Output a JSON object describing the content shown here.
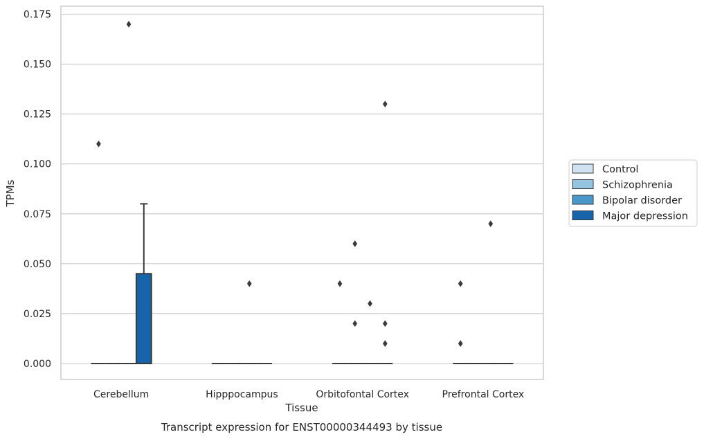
{
  "chart_data": {
    "type": "box",
    "title": "Transcript expression for ENST00000344493 by tissue",
    "xlabel": "Tissue",
    "ylabel": "TPMs",
    "ylim": [
      -0.008,
      0.179
    ],
    "yticks": [
      0.0,
      0.025,
      0.05,
      0.075,
      0.1,
      0.125,
      0.15,
      0.175
    ],
    "ytick_labels": [
      "0.000",
      "0.025",
      "0.050",
      "0.075",
      "0.100",
      "0.125",
      "0.150",
      "0.175"
    ],
    "grid": "horizontal",
    "legend_position": "right",
    "categories": [
      "Cerebellum",
      "Hipppocampus",
      "Orbitofontal Cortex",
      "Prefrontal Cortex"
    ],
    "series": [
      {
        "name": "Control",
        "color": "#d0e1f2",
        "boxes": [
          {
            "min": 0,
            "q1": 0,
            "median": 0,
            "q3": 0,
            "max": 0,
            "outliers": [
              0.11
            ]
          },
          {
            "min": 0,
            "q1": 0,
            "median": 0,
            "q3": 0,
            "max": 0,
            "outliers": []
          },
          {
            "min": 0,
            "q1": 0,
            "median": 0,
            "q3": 0,
            "max": 0,
            "outliers": [
              0.04
            ]
          },
          {
            "min": 0,
            "q1": 0,
            "median": 0,
            "q3": 0,
            "max": 0,
            "outliers": [
              0.04,
              0.01
            ]
          }
        ]
      },
      {
        "name": "Schizophrenia",
        "color": "#94c4df",
        "boxes": [
          {
            "min": 0,
            "q1": 0,
            "median": 0,
            "q3": 0,
            "max": 0,
            "outliers": []
          },
          {
            "min": 0,
            "q1": 0,
            "median": 0,
            "q3": 0,
            "max": 0,
            "outliers": []
          },
          {
            "min": 0,
            "q1": 0,
            "median": 0,
            "q3": 0,
            "max": 0,
            "outliers": [
              0.06,
              0.02
            ]
          },
          {
            "min": 0,
            "q1": 0,
            "median": 0,
            "q3": 0,
            "max": 0,
            "outliers": []
          }
        ]
      },
      {
        "name": "Bipolar disorder",
        "color": "#4a98c9",
        "boxes": [
          {
            "min": 0,
            "q1": 0,
            "median": 0,
            "q3": 0,
            "max": 0,
            "outliers": [
              0.17
            ]
          },
          {
            "min": 0,
            "q1": 0,
            "median": 0,
            "q3": 0,
            "max": 0,
            "outliers": [
              0.04
            ]
          },
          {
            "min": 0,
            "q1": 0,
            "median": 0,
            "q3": 0,
            "max": 0,
            "outliers": [
              0.03
            ]
          },
          {
            "min": 0,
            "q1": 0,
            "median": 0,
            "q3": 0,
            "max": 0,
            "outliers": [
              0.07
            ]
          }
        ]
      },
      {
        "name": "Major depression",
        "color": "#1764ab",
        "boxes": [
          {
            "min": 0,
            "q1": 0,
            "median": 0,
            "q3": 0.045,
            "max": 0.08,
            "outliers": []
          },
          {
            "min": 0,
            "q1": 0,
            "median": 0,
            "q3": 0,
            "max": 0,
            "outliers": []
          },
          {
            "min": 0,
            "q1": 0,
            "median": 0,
            "q3": 0,
            "max": 0,
            "outliers": [
              0.13,
              0.02,
              0.01
            ]
          },
          {
            "min": 0,
            "q1": 0,
            "median": 0,
            "q3": 0,
            "max": 0,
            "outliers": []
          }
        ]
      }
    ]
  }
}
